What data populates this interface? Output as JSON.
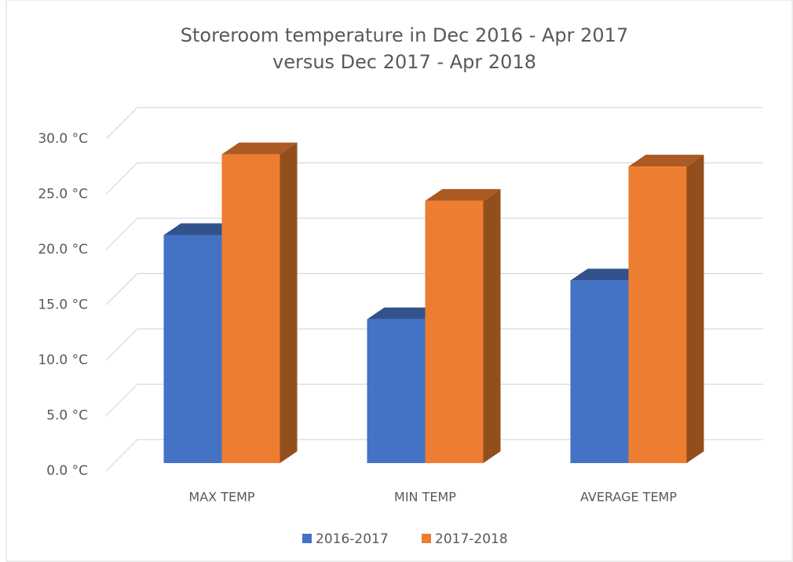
{
  "chart_data": {
    "type": "bar3d",
    "title": [
      "Storeroom temperature in Dec 2016 - Apr 2017",
      "versus Dec 2017 - Apr 2018"
    ],
    "categories": [
      "MAX TEMP",
      "MIN TEMP",
      "AVERAGE TEMP"
    ],
    "series": [
      {
        "name": "2016-2017",
        "color": "#4472c4",
        "values": [
          20.6,
          13.0,
          16.5
        ]
      },
      {
        "name": "2017-2018",
        "color": "#ed7d31",
        "values": [
          27.9,
          23.7,
          26.8
        ]
      }
    ],
    "ylim": [
      0,
      30
    ],
    "yticks": [
      {
        "value": 0,
        "label": "0.0 °C"
      },
      {
        "value": 5,
        "label": "5.0 °C"
      },
      {
        "value": 10,
        "label": "10.0 °C"
      },
      {
        "value": 15,
        "label": "15.0 °C"
      },
      {
        "value": 20,
        "label": "20.0 °C"
      },
      {
        "value": 25,
        "label": "25.0 °C"
      },
      {
        "value": 30,
        "label": "30.0 °C"
      }
    ],
    "grid": true,
    "legend": "bottom"
  }
}
